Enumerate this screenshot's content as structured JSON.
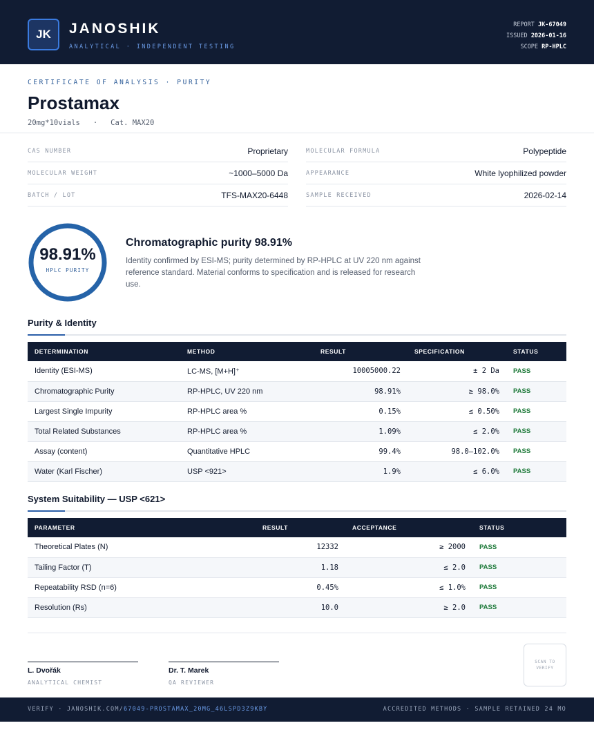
{
  "header": {
    "logo": "JK",
    "brand": "JANOSHIK",
    "tagline": "ANALYTICAL · INDEPENDENT TESTING",
    "meta": [
      {
        "label": "REPORT",
        "value": "JK-67049"
      },
      {
        "label": "ISSUED",
        "value": "2026-01-16"
      },
      {
        "label": "SCOPE",
        "value": "RP-HPLC"
      }
    ]
  },
  "document": {
    "kicker": "CERTIFICATE OF ANALYSIS · PURITY",
    "product": "Prostamax",
    "size": "20mg*10vials",
    "catalog": "Cat. MAX20"
  },
  "properties": [
    {
      "label": "CAS NUMBER",
      "value": "Proprietary"
    },
    {
      "label": "MOLECULAR FORMULA",
      "value": "Polypeptide"
    },
    {
      "label": "MOLECULAR WEIGHT",
      "value": "~1000–5000 Da"
    },
    {
      "label": "APPEARANCE",
      "value": "White lyophilized powder"
    },
    {
      "label": "BATCH / LOT",
      "value": "TFS-MAX20-6448"
    },
    {
      "label": "SAMPLE RECEIVED",
      "value": "2026-02-14"
    }
  ],
  "summary": {
    "gauge_value": "98.91%",
    "gauge_label": "HPLC PURITY",
    "heading": "Chromatographic purity 98.91%",
    "text": "Identity confirmed by ESI-MS; purity determined by RP-HPLC at UV 220 nm against reference standard. Material conforms to specification and is released for research use."
  },
  "purity": {
    "title": "Purity & Identity",
    "columns": [
      "DETERMINATION",
      "METHOD",
      "RESULT",
      "SPECIFICATION",
      "STATUS"
    ],
    "rows": [
      [
        "Identity (ESI-MS)",
        "LC-MS, [M+H]⁺",
        "10005000.22",
        "± 2 Da",
        "PASS"
      ],
      [
        "Chromatographic Purity",
        "RP-HPLC, UV 220 nm",
        "98.91%",
        "≥ 98.0%",
        "PASS"
      ],
      [
        "Largest Single Impurity",
        "RP-HPLC area %",
        "0.15%",
        "≤ 0.50%",
        "PASS"
      ],
      [
        "Total Related Substances",
        "RP-HPLC area %",
        "1.09%",
        "≤ 2.0%",
        "PASS"
      ],
      [
        "Assay (content)",
        "Quantitative HPLC",
        "99.4%",
        "98.0–102.0%",
        "PASS"
      ],
      [
        "Water (Karl Fischer)",
        "USP <921>",
        "1.9%",
        "≤ 6.0%",
        "PASS"
      ]
    ]
  },
  "suitability": {
    "title": "System Suitability — USP <621>",
    "columns": [
      "PARAMETER",
      "RESULT",
      "ACCEPTANCE",
      "STATUS"
    ],
    "rows": [
      [
        "Theoretical Plates (N)",
        "12332",
        "≥ 2000",
        "PASS"
      ],
      [
        "Tailing Factor (T)",
        "1.18",
        "≤ 2.0",
        "PASS"
      ],
      [
        "Repeatability RSD (n=6)",
        "0.45%",
        "≤ 1.0%",
        "PASS"
      ],
      [
        "Resolution (Rs)",
        "10.0",
        "≥ 2.0",
        "PASS"
      ]
    ]
  },
  "signatures": [
    {
      "name": "L. Dvořák",
      "role": "ANALYTICAL CHEMIST"
    },
    {
      "name": "Dr. T. Marek",
      "role": "QA REVIEWER"
    }
  ],
  "qr": "SCAN TO VERIFY",
  "footer": {
    "verify_prefix": "VERIFY · JANOSHIK.COM/",
    "verify_path": "67049-PROSTAMAX_20MG_46LSPD3Z9KBY",
    "right": "ACCREDITED METHODS · SAMPLE RETAINED 24 MO"
  }
}
